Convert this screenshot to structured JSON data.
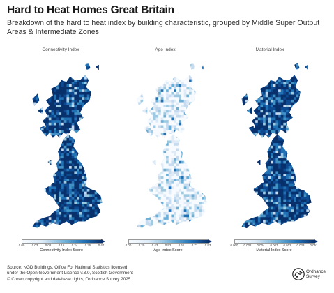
{
  "header": {
    "title": "Hard to Heat Homes Great Britain",
    "subtitle": "Breakdown of the hard to heat index by building characteristic, grouped by Middle Super Output Areas & Intermediate Zones"
  },
  "panels": [
    {
      "title": "Connectivity Index",
      "legend_label": "Connectivity Index Score",
      "ticks": [
        "0.00",
        "0.03",
        "0.08",
        "0.15",
        "0.24",
        "0.35",
        "0.47"
      ],
      "dominant_shade": "dark",
      "colors": {
        "light": "#deebf7",
        "dark": "#08306b"
      }
    },
    {
      "title": "Age Index",
      "legend_label": "Age Index Score",
      "ticks": [
        "0.00",
        "0.20",
        "0.43",
        "0.52",
        "0.61",
        "0.71",
        "0.83"
      ],
      "dominant_shade": "light",
      "colors": {
        "light": "#deebf7",
        "dark": "#08306b"
      }
    },
    {
      "title": "Material Index",
      "legend_label": "Material Index Score",
      "ticks": [
        "0.000",
        "0.002",
        "0.004",
        "0.007",
        "0.012",
        "0.023",
        "0.051"
      ],
      "dominant_shade": "dark",
      "colors": {
        "light": "#deebf7",
        "dark": "#08306b"
      }
    }
  ],
  "footer": {
    "source_lines": [
      "Source: NGD Buildings, Office For National Statistics licensed",
      "under the Open Government Licence v.3.0, Scottish Government",
      "© Crown copyright and database rights, Ordnance Survey 2025"
    ],
    "logo_line1": "Ordnance",
    "logo_line2": "Survey"
  }
}
